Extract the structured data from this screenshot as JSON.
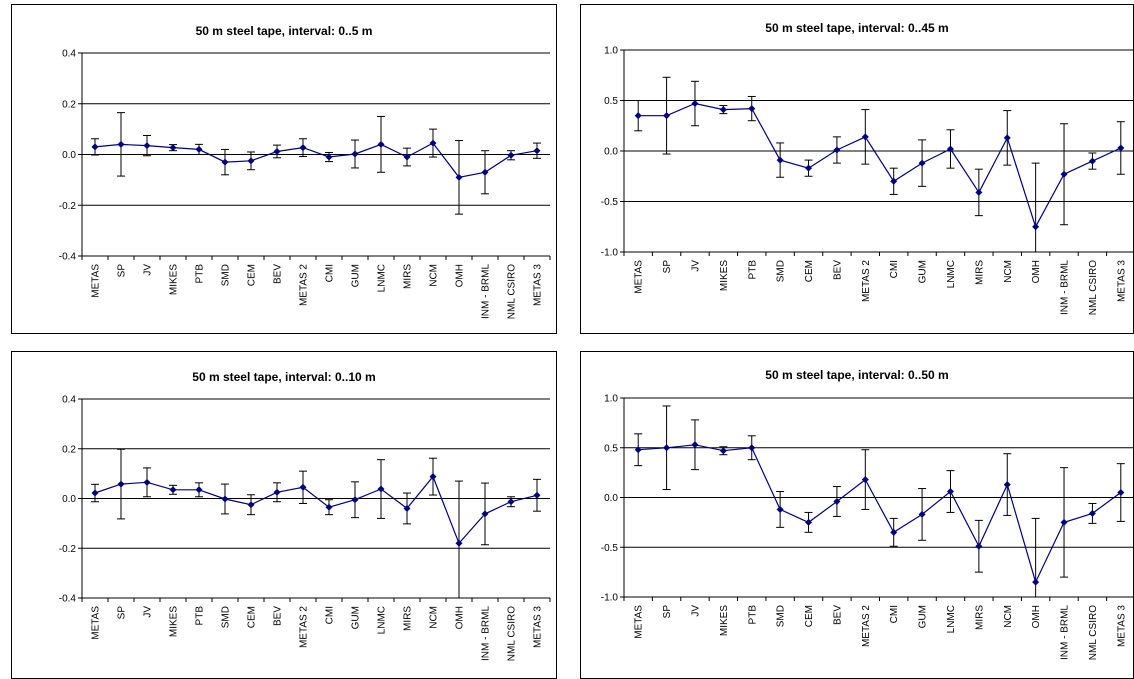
{
  "chart_data": [
    {
      "type": "line",
      "title": "50 m steel tape, interval: 0..5 m",
      "xlabel": "",
      "ylabel": "",
      "ylim": [
        -0.4,
        0.4
      ],
      "yticks": [
        "0.4",
        "0.2",
        "0.0",
        "-0.2",
        "-0.4"
      ],
      "yticks_values": [
        0.4,
        0.2,
        0.0,
        -0.2,
        -0.4
      ],
      "gridlines": true,
      "categories": [
        "METAS",
        "SP",
        "JV",
        "MIKES",
        "PTB",
        "SMD",
        "CEM",
        "BEV",
        "METAS 2",
        "CMI",
        "GUM",
        "LNMC",
        "MIRS",
        "NCM",
        "OMH",
        "INM - BRML",
        "NML CSIRO",
        "METAS 3"
      ],
      "values": [
        0.03,
        0.04,
        0.035,
        0.027,
        0.02,
        -0.03,
        -0.025,
        0.012,
        0.027,
        -0.01,
        0.002,
        0.04,
        -0.01,
        0.045,
        -0.09,
        -0.07,
        -0.003,
        0.015
      ],
      "errors": [
        0.032,
        0.125,
        0.04,
        0.012,
        0.02,
        0.05,
        0.035,
        0.025,
        0.035,
        0.018,
        0.055,
        0.11,
        0.035,
        0.055,
        0.145,
        0.085,
        0.018,
        0.03
      ],
      "color": "#000080"
    },
    {
      "type": "line",
      "title": "50 m steel tape, interval: 0..45 m",
      "xlabel": "",
      "ylabel": "",
      "ylim": [
        -1.0,
        1.0
      ],
      "yticks": [
        "1.0",
        "0.5",
        "0.0",
        "-0.5",
        "-1.0"
      ],
      "yticks_values": [
        1.0,
        0.5,
        0.0,
        -0.5,
        -1.0
      ],
      "gridlines": true,
      "categories": [
        "METAS",
        "SP",
        "JV",
        "MIKES",
        "PTB",
        "SMD",
        "CEM",
        "BEV",
        "METAS 2",
        "CMI",
        "GUM",
        "LNMC",
        "MIRS",
        "NCM",
        "OMH",
        "INM - BRML",
        "NML CSIRO",
        "METAS 3"
      ],
      "values": [
        0.35,
        0.35,
        0.47,
        0.41,
        0.42,
        -0.09,
        -0.17,
        0.01,
        0.14,
        -0.3,
        -0.12,
        0.02,
        -0.41,
        0.13,
        -0.75,
        -0.23,
        -0.1,
        0.03
      ],
      "errors": [
        0.15,
        0.38,
        0.22,
        0.04,
        0.12,
        0.17,
        0.08,
        0.13,
        0.27,
        0.13,
        0.23,
        0.19,
        0.23,
        0.27,
        0.63,
        0.5,
        0.08,
        0.26
      ],
      "color": "#000080"
    },
    {
      "type": "line",
      "title": "50 m steel tape, interval: 0..10 m",
      "xlabel": "",
      "ylabel": "",
      "ylim": [
        -0.4,
        0.4
      ],
      "yticks": [
        "0.4",
        "0.2",
        "0.0",
        "-0.2",
        "-0.4"
      ],
      "yticks_values": [
        0.4,
        0.2,
        0.0,
        -0.2,
        -0.4
      ],
      "gridlines": true,
      "categories": [
        "METAS",
        "SP",
        "JV",
        "MIKES",
        "PTB",
        "SMD",
        "CEM",
        "BEV",
        "METAS 2",
        "CMI",
        "GUM",
        "LNMC",
        "MIRS",
        "NCM",
        "OMH",
        "INM - BRML",
        "NML CSIRO",
        "METAS 3"
      ],
      "values": [
        0.022,
        0.058,
        0.065,
        0.035,
        0.035,
        -0.002,
        -0.025,
        0.025,
        0.045,
        -0.035,
        -0.005,
        0.038,
        -0.04,
        0.088,
        -0.18,
        -0.062,
        -0.013,
        0.013
      ],
      "errors": [
        0.035,
        0.14,
        0.058,
        0.018,
        0.028,
        0.06,
        0.04,
        0.038,
        0.065,
        0.03,
        0.072,
        0.118,
        0.062,
        0.074,
        0.25,
        0.124,
        0.02,
        0.064
      ],
      "color": "#000080"
    },
    {
      "type": "line",
      "title": "50 m steel tape, interval: 0..50 m",
      "xlabel": "",
      "ylabel": "",
      "ylim": [
        -1.0,
        1.0
      ],
      "yticks": [
        "1.0",
        "0.5",
        "0.0",
        "-0.5",
        "-1.0"
      ],
      "yticks_values": [
        1.0,
        0.5,
        0.0,
        -0.5,
        -1.0
      ],
      "gridlines": true,
      "categories": [
        "METAS",
        "SP",
        "JV",
        "MIKES",
        "PTB",
        "SMD",
        "CEM",
        "BEV",
        "METAS 2",
        "CMI",
        "GUM",
        "LNMC",
        "MIRS",
        "NCM",
        "OMH",
        "INM - BRML",
        "NML CSIRO",
        "METAS 3"
      ],
      "values": [
        0.48,
        0.5,
        0.53,
        0.47,
        0.5,
        -0.12,
        -0.25,
        -0.04,
        0.18,
        -0.35,
        -0.17,
        0.06,
        -0.49,
        0.13,
        -0.85,
        -0.25,
        -0.16,
        0.05
      ],
      "errors": [
        0.16,
        0.42,
        0.25,
        0.04,
        0.12,
        0.18,
        0.1,
        0.15,
        0.3,
        0.14,
        0.26,
        0.21,
        0.26,
        0.31,
        0.64,
        0.55,
        0.1,
        0.29
      ],
      "color": "#000080"
    }
  ]
}
